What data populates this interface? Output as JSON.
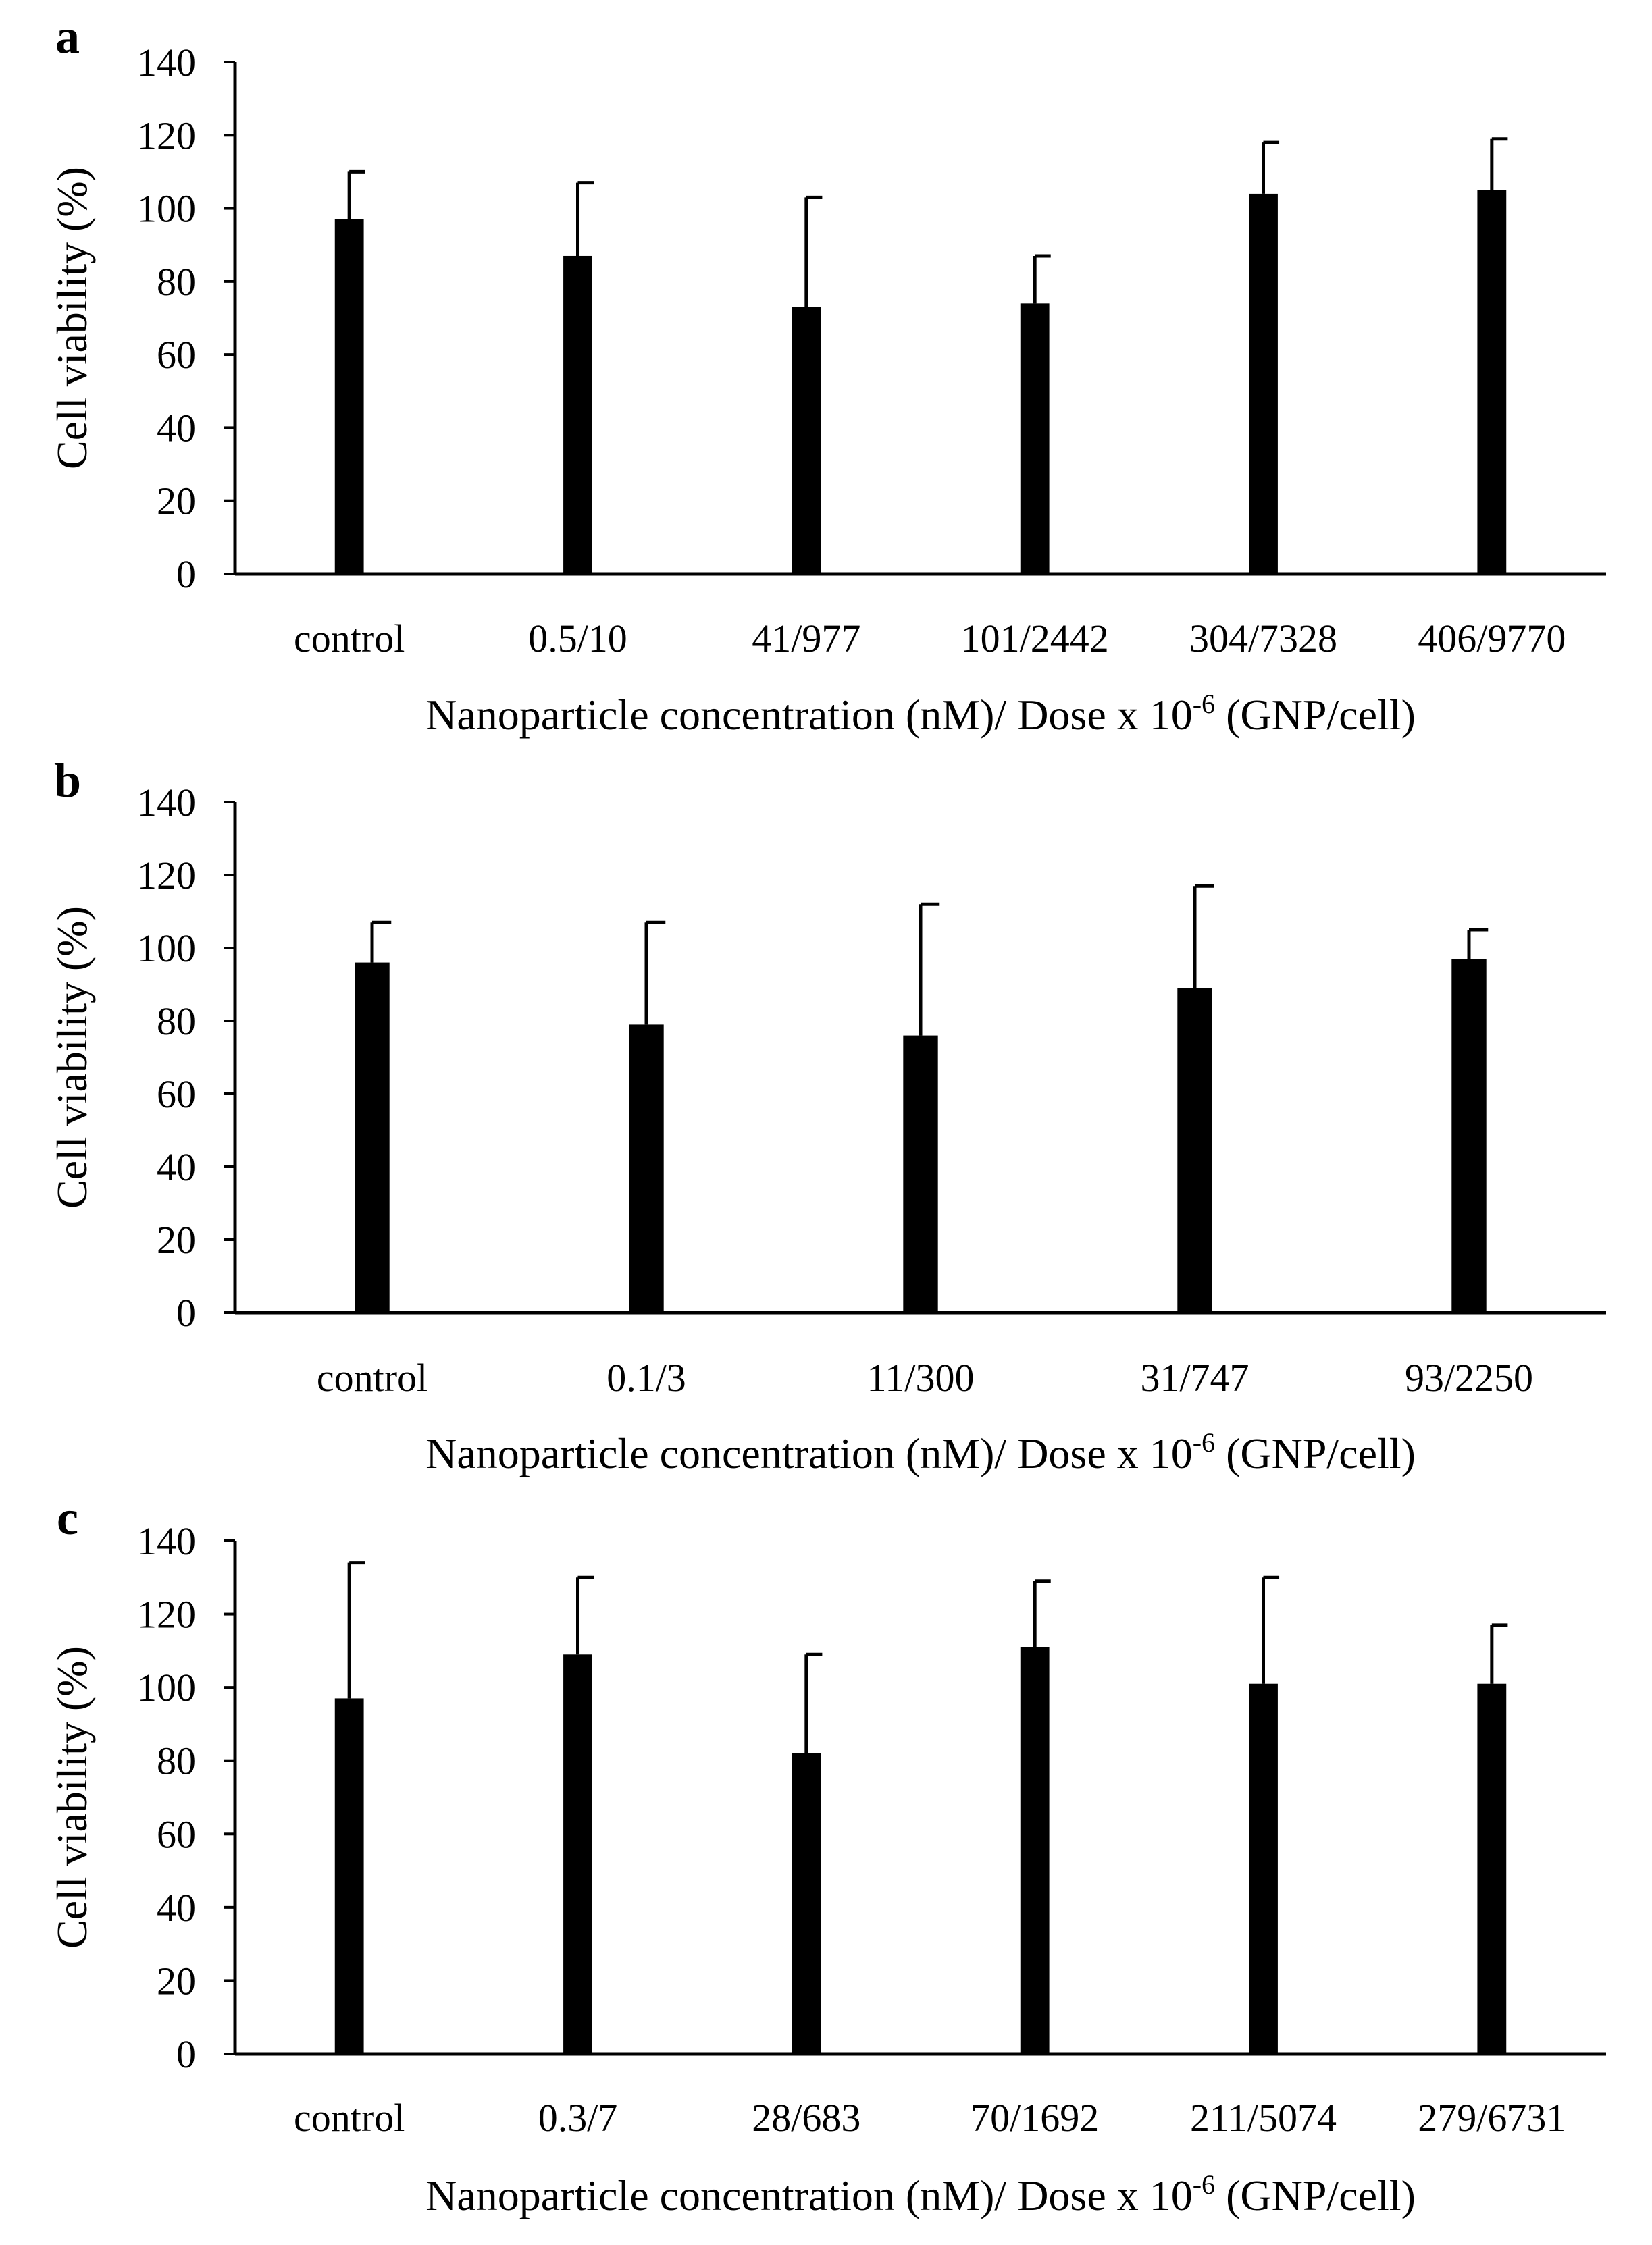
{
  "figure": {
    "colors": {
      "bar": "#000000",
      "axis": "#000000",
      "background": "#ffffff"
    }
  },
  "chart_data": [
    {
      "type": "bar",
      "panel_label": "a",
      "categories": [
        "control",
        "0.5/10",
        "41/977",
        "101/2442",
        "304/7328",
        "406/9770"
      ],
      "series": [
        {
          "name": "Cell viability",
          "values": [
            97,
            87,
            73,
            74,
            104,
            105
          ],
          "errors": [
            13,
            20,
            30,
            13,
            14,
            14
          ]
        }
      ],
      "ylabel": "Cell  viability  (%)",
      "xlabel_main": "Nanoparticle concentration (nM)/ Dose x 10",
      "xlabel_exponent": "-6",
      "xlabel_tail": " (GNP/cell)",
      "ylim": [
        0,
        140
      ],
      "yticks": [
        0,
        20,
        40,
        60,
        80,
        100,
        120,
        140
      ],
      "grid": false
    },
    {
      "type": "bar",
      "panel_label": "b",
      "categories": [
        "control",
        "0.1/3",
        "11/300",
        "31/747",
        "93/2250"
      ],
      "series": [
        {
          "name": "Cell viability",
          "values": [
            96,
            79,
            76,
            89,
            97
          ],
          "errors": [
            11,
            28,
            36,
            28,
            8
          ]
        }
      ],
      "ylabel": "Cell  viability  (%)",
      "xlabel_main": "Nanoparticle concentration (nM)/ Dose x 10",
      "xlabel_exponent": "-6",
      "xlabel_tail": " (GNP/cell)",
      "ylim": [
        0,
        140
      ],
      "yticks": [
        0,
        20,
        40,
        60,
        80,
        100,
        120,
        140
      ],
      "grid": false
    },
    {
      "type": "bar",
      "panel_label": "c",
      "categories": [
        "control",
        "0.3/7",
        "28/683",
        "70/1692",
        "211/5074",
        "279/6731"
      ],
      "series": [
        {
          "name": "Cell viability",
          "values": [
            97,
            109,
            82,
            111,
            101,
            101
          ],
          "errors": [
            37,
            21,
            27,
            18,
            29,
            16
          ]
        }
      ],
      "ylabel": "Cell  viability  (%)",
      "xlabel_main": "Nanoparticle concentration (nM)/ Dose x 10",
      "xlabel_exponent": "-6",
      "xlabel_tail": " (GNP/cell)",
      "ylim": [
        0,
        140
      ],
      "yticks": [
        0,
        20,
        40,
        60,
        80,
        100,
        120,
        140
      ],
      "grid": false
    }
  ]
}
